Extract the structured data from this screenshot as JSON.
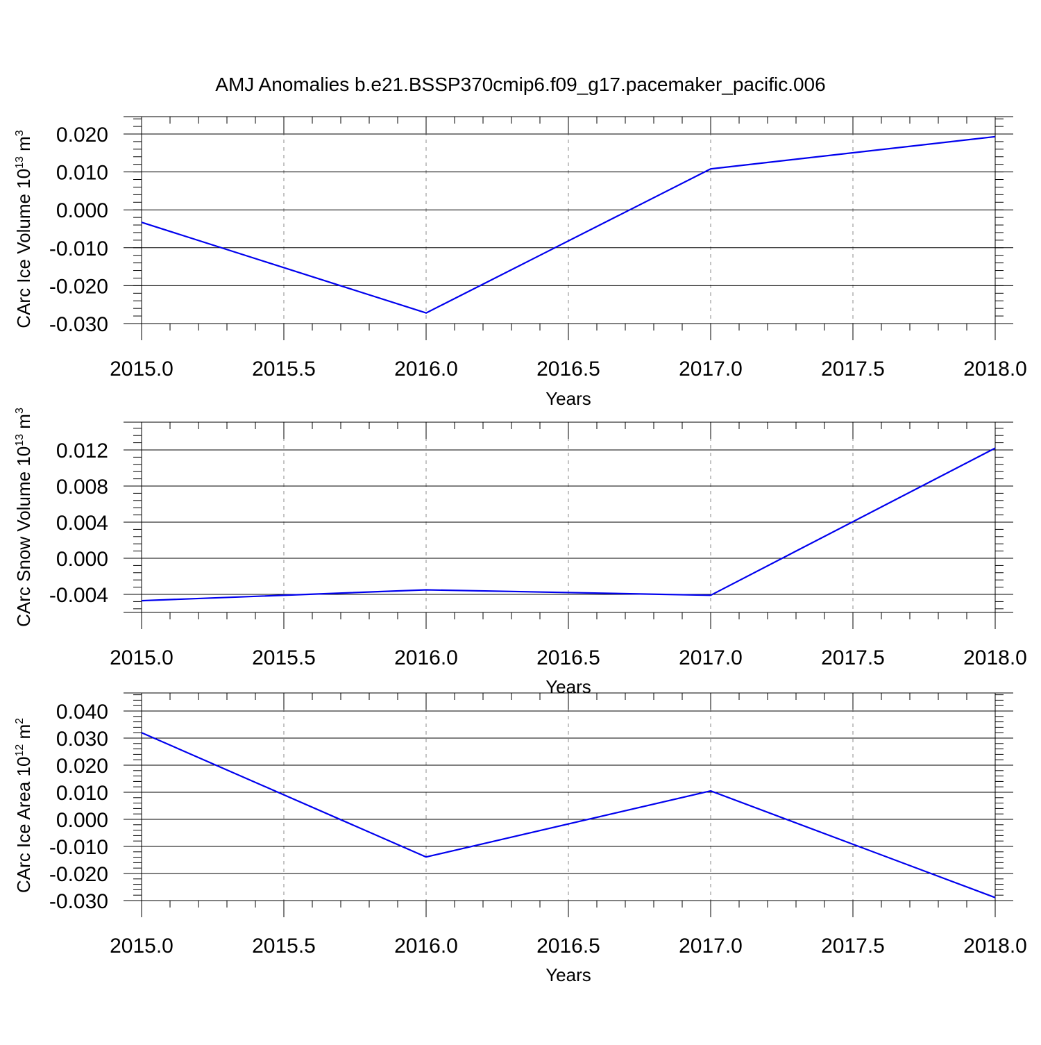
{
  "title": "AMJ Anomalies b.e21.BSSP370cmip6.f09_g17.pacemaker_pacific.006",
  "colors": {
    "series": "#0000ee",
    "axis": "#000000",
    "grid": "#888888"
  },
  "chart_data": [
    {
      "type": "line",
      "ylabel": "CArc Ice Volume 10",
      "ylabel_sup": "13",
      "ylabel_unit": "m",
      "ylabel_unit_sup": "3",
      "xlabel": "Years",
      "xlim": [
        2015.0,
        2018.0
      ],
      "ylim": [
        -0.03,
        0.02
      ],
      "x_ticks": [
        "2015.0",
        "2015.5",
        "2016.0",
        "2016.5",
        "2017.0",
        "2017.5",
        "2018.0"
      ],
      "y_ticks": [
        "0.020",
        "0.010",
        "0.000",
        "-0.010",
        "-0.020",
        "-0.030"
      ],
      "y_tick_values": [
        0.02,
        0.01,
        0.0,
        -0.01,
        -0.02,
        -0.03
      ],
      "grid": "vertical dashed",
      "x": [
        2015.0,
        2016.0,
        2017.0,
        2018.0
      ],
      "values": [
        -0.0033,
        -0.0272,
        0.0108,
        0.0193
      ]
    },
    {
      "type": "line",
      "ylabel": "CArc Snow Volume 10",
      "ylabel_sup": "13",
      "ylabel_unit": "m",
      "ylabel_unit_sup": "3",
      "xlabel": "Years",
      "xlim": [
        2015.0,
        2018.0
      ],
      "ylim": [
        -0.006,
        0.015
      ],
      "x_ticks": [
        "2015.0",
        "2015.5",
        "2016.0",
        "2016.5",
        "2017.0",
        "2017.5",
        "2018.0"
      ],
      "y_ticks": [
        "0.012",
        "0.008",
        "0.004",
        "0.000",
        "-0.004"
      ],
      "y_tick_values": [
        0.012,
        0.008,
        0.004,
        0.0,
        -0.004
      ],
      "grid": "vertical dashed",
      "x": [
        2015.0,
        2016.0,
        2017.0,
        2018.0
      ],
      "values": [
        -0.0047,
        -0.0035,
        -0.0041,
        0.0122
      ]
    },
    {
      "type": "line",
      "ylabel": "CArc Ice Area 10",
      "ylabel_sup": "12",
      "ylabel_unit": "m",
      "ylabel_unit_sup": "2",
      "xlabel": "Years",
      "xlim": [
        2015.0,
        2018.0
      ],
      "ylim": [
        -0.03,
        0.04
      ],
      "x_ticks": [
        "2015.0",
        "2015.5",
        "2016.0",
        "2016.5",
        "2017.0",
        "2017.5",
        "2018.0"
      ],
      "y_ticks": [
        "0.040",
        "0.030",
        "0.020",
        "0.010",
        "0.000",
        "-0.010",
        "-0.020",
        "-0.030"
      ],
      "y_tick_values": [
        0.04,
        0.03,
        0.02,
        0.01,
        0.0,
        -0.01,
        -0.02,
        -0.03
      ],
      "grid": "vertical dashed",
      "x": [
        2015.0,
        2016.0,
        2017.0,
        2018.0
      ],
      "values": [
        0.032,
        -0.0139,
        0.0105,
        -0.0289
      ]
    }
  ]
}
